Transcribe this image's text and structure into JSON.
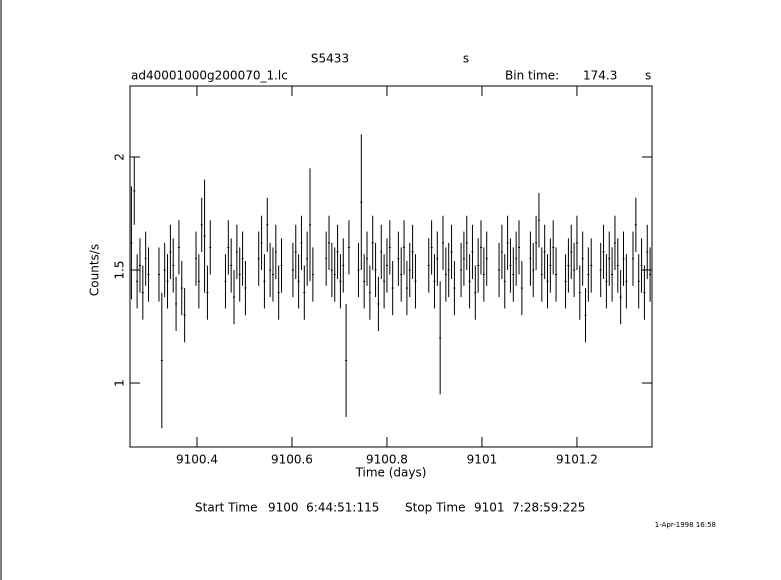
{
  "chart_data": {
    "type": "errorbar",
    "title": "S5433",
    "title_unit": "s",
    "subtitle": "ad40001000g200070_1.lc",
    "bin_time_label": "Bin time:",
    "bin_time": "174.3",
    "bin_time_unit": "s",
    "x_label": "Time (days)",
    "y_label": "Counts/s",
    "start_label": "Start Time",
    "start_time": "9100  6:44:51:115",
    "stop_label": "Stop Time",
    "stop_time": "9101  7:28:59:225",
    "timestamp": "1-Apr-1998 16:58",
    "color": "#000000",
    "xlim": [
      9100.259,
      9101.358
    ],
    "ylim": [
      0.717,
      2.314
    ],
    "xticks": [
      9100.4,
      9100.6,
      9100.8,
      9101,
      9101.2
    ],
    "yticks": [
      1,
      1.5,
      2
    ],
    "x": [
      9100.262,
      9100.268,
      9100.274,
      9100.28,
      9100.286,
      9100.292,
      9100.298,
      9100.32,
      9100.326,
      9100.332,
      9100.338,
      9100.344,
      9100.35,
      9100.356,
      9100.362,
      9100.368,
      9100.374,
      9100.398,
      9100.404,
      9100.41,
      9100.416,
      9100.422,
      9100.428,
      9100.46,
      9100.466,
      9100.472,
      9100.478,
      9100.484,
      9100.49,
      9100.496,
      9100.502,
      9100.53,
      9100.536,
      9100.542,
      9100.548,
      9100.554,
      9100.56,
      9100.566,
      9100.572,
      9100.578,
      9100.602,
      9100.608,
      9100.614,
      9100.62,
      9100.626,
      9100.632,
      9100.638,
      9100.644,
      9100.672,
      9100.678,
      9100.684,
      9100.69,
      9100.696,
      9100.702,
      9100.708,
      9100.714,
      9100.72,
      9100.74,
      9100.746,
      9100.752,
      9100.758,
      9100.764,
      9100.77,
      9100.776,
      9100.782,
      9100.788,
      9100.794,
      9100.8,
      9100.806,
      9100.812,
      9100.824,
      9100.83,
      9100.836,
      9100.842,
      9100.848,
      9100.854,
      9100.86,
      9100.888,
      9100.894,
      9100.9,
      9100.906,
      9100.912,
      9100.918,
      9100.924,
      9100.93,
      9100.936,
      9100.942,
      9100.956,
      9100.962,
      9100.968,
      9100.974,
      9100.98,
      9100.986,
      9100.992,
      9100.998,
      9101.004,
      9101.01,
      9101.036,
      9101.042,
      9101.048,
      9101.054,
      9101.06,
      9101.066,
      9101.072,
      9101.078,
      9101.084,
      9101.102,
      9101.108,
      9101.114,
      9101.12,
      9101.126,
      9101.132,
      9101.138,
      9101.144,
      9101.15,
      9101.156,
      9101.176,
      9101.182,
      9101.188,
      9101.194,
      9101.2,
      9101.206,
      9101.212,
      9101.218,
      9101.224,
      9101.23,
      9101.25,
      9101.256,
      9101.262,
      9101.268,
      9101.274,
      9101.28,
      9101.286,
      9101.292,
      9101.298,
      9101.304,
      9101.318,
      9101.324,
      9101.33,
      9101.336,
      9101.342,
      9101.348,
      9101.354
    ],
    "values": [
      1.62,
      1.85,
      1.45,
      1.52,
      1.4,
      1.55,
      1.48,
      1.48,
      1.1,
      1.5,
      1.45,
      1.58,
      1.52,
      1.35,
      1.6,
      1.42,
      1.3,
      1.55,
      1.45,
      1.7,
      1.65,
      1.4,
      1.6,
      1.45,
      1.6,
      1.52,
      1.38,
      1.58,
      1.48,
      1.55,
      1.42,
      1.55,
      1.62,
      1.45,
      1.7,
      1.5,
      1.48,
      1.58,
      1.4,
      1.52,
      1.5,
      1.58,
      1.45,
      1.62,
      1.4,
      1.55,
      1.7,
      1.48,
      1.55,
      1.62,
      1.5,
      1.48,
      1.58,
      1.45,
      1.52,
      1.1,
      1.6,
      1.5,
      1.8,
      1.45,
      1.55,
      1.4,
      1.62,
      1.5,
      1.35,
      1.58,
      1.45,
      1.52,
      1.6,
      1.42,
      1.55,
      1.48,
      1.6,
      1.42,
      1.5,
      1.58,
      1.45,
      1.52,
      1.6,
      1.45,
      1.55,
      1.2,
      1.62,
      1.48,
      1.5,
      1.58,
      1.42,
      1.5,
      1.55,
      1.62,
      1.45,
      1.58,
      1.4,
      1.52,
      1.6,
      1.48,
      1.55,
      1.5,
      1.58,
      1.45,
      1.62,
      1.52,
      1.48,
      1.55,
      1.6,
      1.42,
      1.55,
      1.5,
      1.62,
      1.72,
      1.48,
      1.58,
      1.45,
      1.52,
      1.6,
      1.48,
      1.45,
      1.52,
      1.58,
      1.5,
      1.62,
      1.4,
      1.55,
      1.3,
      1.48,
      1.52,
      1.5,
      1.58,
      1.45,
      1.55,
      1.48,
      1.62,
      1.52,
      1.38,
      1.55,
      1.45,
      1.55,
      1.7,
      1.45,
      1.52,
      1.4,
      1.58,
      1.48
    ],
    "errors": [
      0.25,
      0.15,
      0.12,
      0.12,
      0.12,
      0.12,
      0.12,
      0.12,
      0.3,
      0.12,
      0.12,
      0.12,
      0.12,
      0.12,
      0.12,
      0.12,
      0.12,
      0.12,
      0.12,
      0.12,
      0.25,
      0.12,
      0.12,
      0.12,
      0.12,
      0.12,
      0.12,
      0.12,
      0.12,
      0.12,
      0.12,
      0.12,
      0.12,
      0.12,
      0.12,
      0.12,
      0.12,
      0.12,
      0.12,
      0.12,
      0.12,
      0.12,
      0.12,
      0.12,
      0.12,
      0.12,
      0.25,
      0.12,
      0.12,
      0.12,
      0.12,
      0.12,
      0.12,
      0.12,
      0.12,
      0.25,
      0.12,
      0.12,
      0.3,
      0.12,
      0.12,
      0.12,
      0.12,
      0.12,
      0.12,
      0.12,
      0.12,
      0.12,
      0.12,
      0.12,
      0.12,
      0.12,
      0.12,
      0.12,
      0.12,
      0.12,
      0.12,
      0.12,
      0.12,
      0.12,
      0.12,
      0.25,
      0.12,
      0.12,
      0.12,
      0.12,
      0.12,
      0.12,
      0.12,
      0.12,
      0.12,
      0.12,
      0.12,
      0.12,
      0.12,
      0.12,
      0.12,
      0.12,
      0.12,
      0.12,
      0.12,
      0.12,
      0.12,
      0.12,
      0.12,
      0.12,
      0.12,
      0.12,
      0.12,
      0.12,
      0.12,
      0.12,
      0.12,
      0.12,
      0.12,
      0.12,
      0.12,
      0.12,
      0.12,
      0.12,
      0.12,
      0.12,
      0.12,
      0.12,
      0.12,
      0.12,
      0.12,
      0.12,
      0.12,
      0.12,
      0.12,
      0.12,
      0.12,
      0.12,
      0.12,
      0.12,
      0.12,
      0.12,
      0.12,
      0.12,
      0.12,
      0.12,
      0.12
    ]
  }
}
